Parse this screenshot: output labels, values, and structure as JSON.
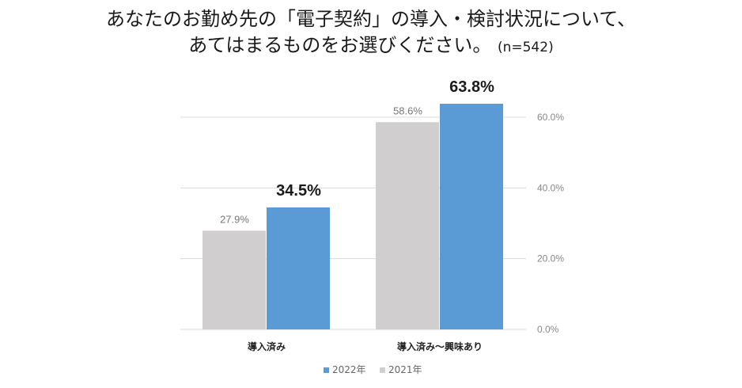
{
  "title": {
    "line1": "あなたのお勤め先の「電子契約」の導入・検討状況について、",
    "line2": "あてはまるものをお選びください。",
    "note": "(n=542)"
  },
  "colors": {
    "y2022": "#5b9bd5",
    "y2021": "#d0cece",
    "grid": "#d9d9d9"
  },
  "chart_data": {
    "type": "bar",
    "categories": [
      "導入済み",
      "導入済み～興味あり"
    ],
    "series": [
      {
        "name": "2021年",
        "values": [
          27.9,
          58.6
        ],
        "labels": [
          "27.9%",
          "58.6%"
        ]
      },
      {
        "name": "2022年",
        "values": [
          34.5,
          63.8
        ],
        "labels": [
          "34.5%",
          "63.8%"
        ]
      }
    ],
    "ylim": [
      0,
      60
    ],
    "yticks": [
      0,
      20,
      40,
      60
    ],
    "ytick_labels": [
      "0.0%",
      "20.0%",
      "40.0%",
      "60.0%"
    ],
    "y_axis_side": "right",
    "grid": true,
    "legend": {
      "position": "bottom",
      "entries": [
        "2022年",
        "2021年"
      ]
    }
  }
}
